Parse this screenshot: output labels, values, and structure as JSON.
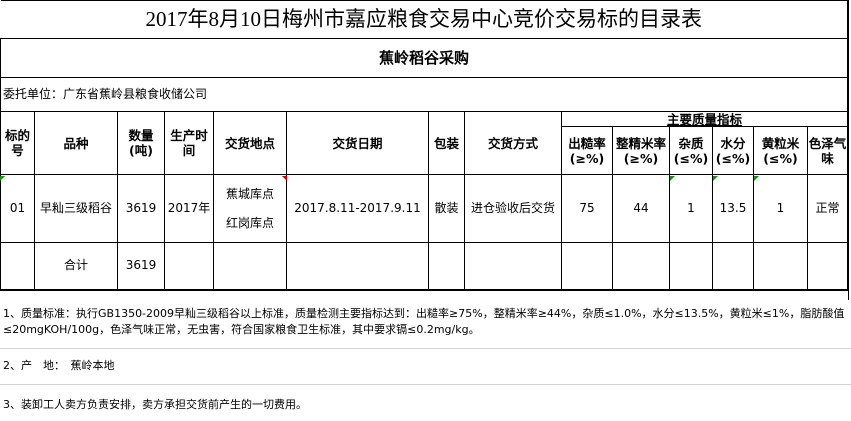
{
  "title": "2017年8月10日梅州市嘉应粮食交易中心竞价交易标的目录表",
  "subtitle": "蕉岭稻谷采购",
  "client": "委托单位：广东省蕉岭县粮食收储公司",
  "headers": {
    "lot_no": "标的号",
    "variety": "品种",
    "quantity": "数量(吨)",
    "production_time": "生产时间",
    "delivery_place": "交货地点",
    "delivery_date": "交货日期",
    "packaging": "包装",
    "delivery_method": "交货方式",
    "quality_group": "主要质量指标",
    "milling_rate": "出糙率(≥%)",
    "head_rice_rate": "整精米率(≥%)",
    "impurity": "杂质(≤%)",
    "moisture": "水分(≤%)",
    "yellow_rice": "黄粒米(≤%)",
    "color_smell": "色泽气味"
  },
  "rows": [
    {
      "lot_no": "01",
      "variety": "早籼三级稻谷",
      "quantity": "3619",
      "production_time": "2017年",
      "delivery_place_1": "蕉城库点",
      "delivery_place_2": "红岗库点",
      "delivery_date": "2017.8.11-2017.9.11",
      "packaging": "散装",
      "delivery_method": "进仓验收后交货",
      "milling_rate": "75",
      "head_rice_rate": "44",
      "impurity": "1",
      "moisture": "13.5",
      "yellow_rice": "1",
      "color_smell": "正常"
    }
  ],
  "total": {
    "label": "合计",
    "quantity": "3619"
  },
  "notes": [
    "1、质量标准：执行GB1350-2009早籼三级稻谷以上标准，质量检测主要指标达到：出糙率≥75%，整精米率≥44%，杂质≤1.0%，水分≤13.5%，黄粒米≤1%，脂肪酸值≤20mgKOH/100g，色泽气味正常，无虫害，符合国家粮食卫生标准，其中要求镉≤0.2mg/kg。",
    "2、产　地：　蕉岭本地",
    "3、装卸工人卖方负责安排，卖方承担交货前产生的一切费用。"
  ]
}
